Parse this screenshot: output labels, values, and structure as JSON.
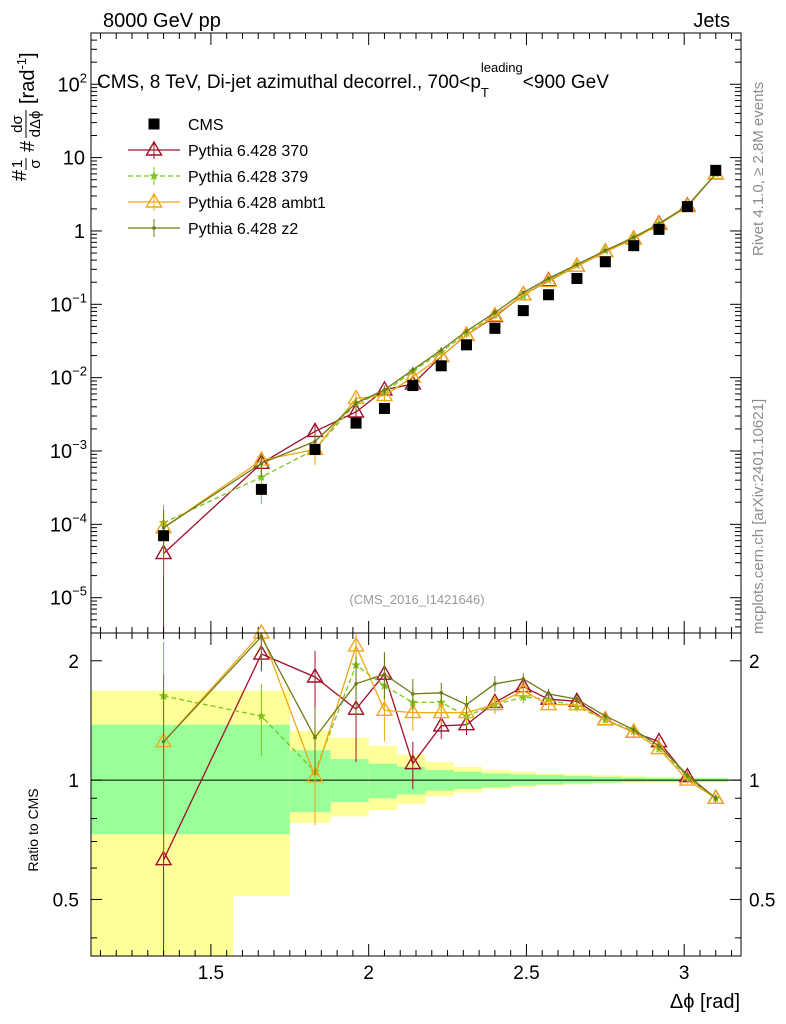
{
  "header": {
    "energy": "8000 GeV pp",
    "category": "Jets",
    "rivet_note": "Rivet 4.1.0, ≥ 2.8M events",
    "site_note": "mcplots.cern.ch [arXiv:2401.10621]"
  },
  "chart_data": {
    "type": "scatter",
    "title": "CMS, 8 TeV, Di-jet azimuthal decorrel., 700<p_T^leading<900 GeV",
    "title_parts": {
      "main": "CMS, 8 TeV, Di-jet azimuthal decorrel., 700<p",
      "sub": "T",
      "sup": "leading",
      "tail": "<900 GeV"
    },
    "analysis_id": "(CMS_2016_I1421646)",
    "xlabel": "Δϕ [rad]",
    "ylabel": "#1/σ #dσ/dΔϕ [rad⁻¹]",
    "ylabel_parts": {
      "hash": "#",
      "one": "1",
      "sigma": "σ",
      "dsigma": "dσ",
      "dphi": "dΔϕ",
      "unit": "[rad",
      "unit_sup": "-1",
      "unit_close": "]"
    },
    "xlim": [
      1.12,
      3.18
    ],
    "ylim": [
      3.3e-06,
      500
    ],
    "yscale": "log",
    "x_ticks": [
      1.5,
      2,
      2.5,
      3
    ],
    "x_tick_labels": [
      "1.5",
      "2",
      "2.5",
      "3"
    ],
    "y_ticks": [
      1e-05,
      0.0001,
      0.001,
      0.01,
      0.1,
      1,
      10,
      100
    ],
    "y_tick_labels": [
      {
        "base": "10",
        "exp": "−5"
      },
      {
        "base": "10",
        "exp": "−4"
      },
      {
        "base": "10",
        "exp": "−3"
      },
      {
        "base": "10",
        "exp": "−2"
      },
      {
        "base": "10",
        "exp": "−1"
      },
      {
        "base": "1",
        "exp": ""
      },
      {
        "base": "10",
        "exp": ""
      },
      {
        "base": "10",
        "exp": "2"
      }
    ],
    "legend_position": "top-left",
    "x": [
      1.35,
      1.66,
      1.83,
      1.96,
      2.05,
      2.14,
      2.23,
      2.31,
      2.4,
      2.49,
      2.57,
      2.66,
      2.75,
      2.84,
      2.92,
      3.01,
      3.1
    ],
    "data": {
      "name": "CMS",
      "color": "#000000",
      "values": [
        7e-05,
        0.0003,
        0.00105,
        0.0024,
        0.0038,
        0.0078,
        0.0145,
        0.028,
        0.047,
        0.082,
        0.135,
        0.225,
        0.38,
        0.63,
        1.05,
        2.15,
        6.7
      ]
    },
    "series": [
      {
        "name": "Pythia 6.428 370",
        "color": "#a01028",
        "marker": "triangle-open",
        "dashed": false,
        "values": [
          4e-05,
          0.00068,
          0.00185,
          0.0034,
          0.0068,
          0.0082,
          0.0195,
          0.038,
          0.068,
          0.135,
          0.21,
          0.33,
          0.52,
          0.78,
          1.25,
          2.2,
          6.0
        ],
        "errors": [
          4e-05,
          0.00022,
          0.0004,
          0.0007,
          0.001,
          0.0012,
          0.0022,
          0.003,
          0.004,
          0.006,
          0.008,
          0.01,
          0.015,
          0.02,
          0.03,
          0.05,
          0.1
        ]
      },
      {
        "name": "Pythia 6.428 379",
        "color": "#7cc41e",
        "marker": "star",
        "dashed": true,
        "values": [
          0.000105,
          0.00044,
          0.00105,
          0.0045,
          0.0063,
          0.0122,
          0.0225,
          0.04,
          0.072,
          0.13,
          0.215,
          0.34,
          0.54,
          0.82,
          1.25,
          2.18,
          6.0
        ],
        "errors": [
          8e-05,
          0.00025,
          0.0004,
          0.0009,
          0.0011,
          0.0014,
          0.0022,
          0.003,
          0.004,
          0.006,
          0.008,
          0.01,
          0.015,
          0.02,
          0.03,
          0.05,
          0.1
        ]
      },
      {
        "name": "Pythia 6.428 ambt1",
        "color": "#f0a818",
        "marker": "triangle-open",
        "dashed": false,
        "values": [
          9e-05,
          0.00075,
          0.00105,
          0.0052,
          0.0057,
          0.0102,
          0.0195,
          0.038,
          0.07,
          0.135,
          0.205,
          0.33,
          0.52,
          0.78,
          1.22,
          2.15,
          6.0
        ],
        "errors": [
          7e-05,
          0.00025,
          0.0004,
          0.0009,
          0.001,
          0.0013,
          0.0022,
          0.003,
          0.004,
          0.006,
          0.008,
          0.01,
          0.015,
          0.02,
          0.03,
          0.05,
          0.1
        ]
      },
      {
        "name": "Pythia 6.428 z2",
        "color": "#6e7a16",
        "marker": "dot",
        "dashed": false,
        "values": [
          9e-05,
          0.00068,
          0.00135,
          0.0045,
          0.0068,
          0.0128,
          0.0238,
          0.043,
          0.077,
          0.145,
          0.225,
          0.35,
          0.54,
          0.82,
          1.25,
          2.2,
          6.0
        ],
        "errors": [
          7e-05,
          0.00024,
          0.0004,
          0.0009,
          0.001,
          0.0014,
          0.0022,
          0.003,
          0.004,
          0.006,
          0.008,
          0.01,
          0.015,
          0.02,
          0.03,
          0.05,
          0.1
        ]
      }
    ],
    "ratio": {
      "ylabel": "Ratio to CMS",
      "ylim": [
        0.36,
        2.35
      ],
      "yscale": "log",
      "y_ticks": [
        0.5,
        1,
        2
      ],
      "y_tick_labels": [
        "0.5",
        "1",
        "2"
      ],
      "bins": [
        1.12,
        1.57,
        1.75,
        1.88,
        2.0,
        2.09,
        2.18,
        2.27,
        2.36,
        2.45,
        2.53,
        2.62,
        2.71,
        2.8,
        2.88,
        2.97,
        3.06,
        3.14
      ],
      "band_inner_lo": [
        0.73,
        0.73,
        0.83,
        0.88,
        0.9,
        0.92,
        0.94,
        0.95,
        0.96,
        0.97,
        0.975,
        0.98,
        0.985,
        0.99,
        0.99,
        0.99,
        0.99
      ],
      "band_inner_hi": [
        1.38,
        1.38,
        1.19,
        1.13,
        1.1,
        1.08,
        1.06,
        1.05,
        1.04,
        1.035,
        1.03,
        1.025,
        1.02,
        1.015,
        1.012,
        1.01,
        1.01
      ],
      "band_outer_lo": [
        0.33,
        0.51,
        0.78,
        0.81,
        0.84,
        0.87,
        0.91,
        0.93,
        0.95,
        0.96,
        0.97,
        0.975,
        0.98,
        0.985,
        0.985,
        0.99,
        0.99
      ],
      "band_outer_hi": [
        1.68,
        1.68,
        1.33,
        1.28,
        1.22,
        1.16,
        1.11,
        1.08,
        1.06,
        1.05,
        1.04,
        1.035,
        1.03,
        1.025,
        1.02,
        1.015,
        1.015
      ],
      "series": [
        {
          "name": "Pythia 6.428 370",
          "values": [
            0.63,
            2.08,
            1.82,
            1.51,
            1.85,
            1.1,
            1.37,
            1.38,
            1.57,
            1.72,
            1.6,
            1.58,
            1.42,
            1.32,
            1.25,
            1.02,
            0.9
          ],
          "errors": [
            0.6,
            0.2,
            0.3,
            0.4,
            0.25,
            0.15,
            0.1,
            0.08,
            0.08,
            0.06,
            0.05,
            0.04,
            0.03,
            0.03,
            0.03,
            0.02,
            0.02
          ]
        },
        {
          "name": "Pythia 6.428 379",
          "values": [
            1.63,
            1.45,
            1.05,
            1.95,
            1.73,
            1.57,
            1.57,
            1.45,
            1.55,
            1.62,
            1.6,
            1.53,
            1.42,
            1.33,
            1.2,
            1.02,
            0.9
          ],
          "errors": [
            0.6,
            0.3,
            0.25,
            0.3,
            0.25,
            0.15,
            0.1,
            0.08,
            0.08,
            0.06,
            0.05,
            0.04,
            0.03,
            0.03,
            0.03,
            0.02,
            0.02
          ]
        },
        {
          "name": "Pythia 6.428 ambt1",
          "values": [
            1.25,
            2.4,
            1.02,
            2.18,
            1.5,
            1.48,
            1.48,
            1.48,
            1.55,
            1.68,
            1.55,
            1.55,
            1.42,
            1.32,
            1.2,
            1.0,
            0.9
          ],
          "errors": [
            0.6,
            0.3,
            0.25,
            0.3,
            0.25,
            0.15,
            0.1,
            0.08,
            0.08,
            0.06,
            0.05,
            0.04,
            0.03,
            0.03,
            0.03,
            0.02,
            0.02
          ]
        },
        {
          "name": "Pythia 6.428 z2",
          "values": [
            1.25,
            2.3,
            1.28,
            1.75,
            1.85,
            1.65,
            1.66,
            1.55,
            1.75,
            1.8,
            1.65,
            1.6,
            1.45,
            1.34,
            1.22,
            1.03,
            0.9
          ],
          "errors": [
            0.6,
            0.3,
            0.25,
            0.3,
            0.25,
            0.15,
            0.1,
            0.08,
            0.08,
            0.06,
            0.05,
            0.04,
            0.03,
            0.03,
            0.03,
            0.02,
            0.02
          ]
        }
      ]
    }
  }
}
